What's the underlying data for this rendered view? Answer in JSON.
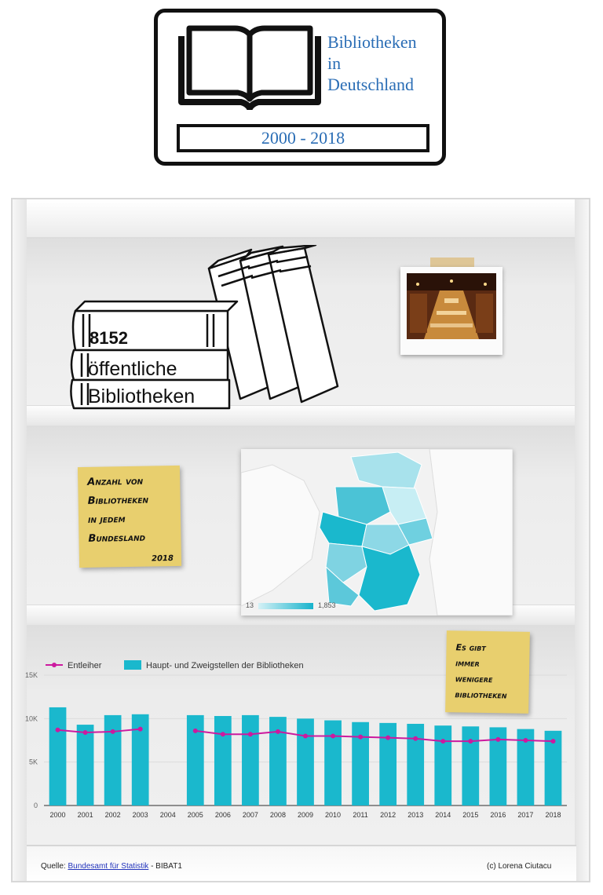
{
  "header": {
    "title_lines": [
      "Bibliotheken",
      "in",
      "Deutschland"
    ],
    "years": "2000 - 2018"
  },
  "books": {
    "count": "8152",
    "line2": "öffentliche",
    "line3": "Bibliotheken"
  },
  "sticky_notes": {
    "note1": {
      "lines": [
        "Anzahl von",
        "Bibliotheken",
        "in jedem",
        "Bundesland"
      ],
      "year": "2018"
    },
    "note2": {
      "lines": [
        "Es gibt",
        "immer",
        "wenigere",
        "bibliotheken"
      ]
    }
  },
  "map": {
    "legend_min": "13",
    "legend_max": "1,853"
  },
  "colors": {
    "bar": "#1ab8cd",
    "line": "#cc1a9f",
    "title_blue": "#2a6db5",
    "sticky": "#e8cf6e"
  },
  "chart_data": {
    "type": "bar",
    "categories": [
      "2000",
      "2001",
      "2002",
      "2003",
      "2004",
      "2005",
      "2006",
      "2007",
      "2008",
      "2009",
      "2010",
      "2011",
      "2012",
      "2013",
      "2014",
      "2015",
      "2016",
      "2017",
      "2018"
    ],
    "series": [
      {
        "name": "Haupt- und Zweigstellen der Bibliotheken",
        "type": "bar",
        "values": [
          11300,
          9300,
          10400,
          10500,
          null,
          10400,
          10300,
          10400,
          10200,
          10000,
          9800,
          9600,
          9500,
          9400,
          9200,
          9100,
          9000,
          8800,
          8600
        ]
      },
      {
        "name": "Entleiher",
        "type": "line",
        "values": [
          8700,
          8400,
          8500,
          8800,
          null,
          8600,
          8200,
          8200,
          8500,
          8000,
          8000,
          7900,
          7800,
          7700,
          7400,
          7400,
          7600,
          7500,
          7400
        ]
      }
    ],
    "ylim": [
      0,
      15000
    ],
    "yticks": [
      "0",
      "5K",
      "10K",
      "15K"
    ],
    "legend": [
      "Entleiher",
      "Haupt- und Zweigstellen der Bibliotheken"
    ],
    "legend_position": "top-left"
  },
  "footer": {
    "source_prefix": "Quelle: ",
    "source_link": "Bundesamt für Statistik",
    "source_suffix": " - BIBAT1",
    "copyright": "(c) Lorena Ciutacu"
  }
}
